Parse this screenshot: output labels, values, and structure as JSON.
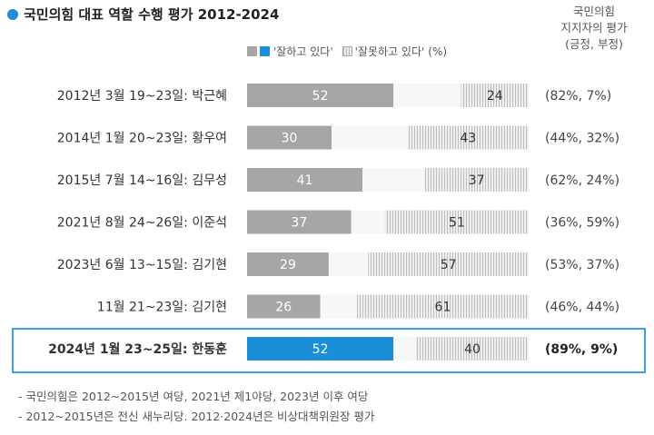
{
  "title": "국민의힘 대표 역할 수행 평가 2012-2024",
  "side_header": [
    "국민의힘",
    "지지자의 평가",
    "(긍정, 부정)"
  ],
  "legend": {
    "positive": "'잘하고 있다'",
    "negative": "'잘못하고 있다'",
    "unit": "(%)"
  },
  "colors": {
    "positive": "#a6a6a6",
    "highlight": "#1a8fd8",
    "accent_dot": "#1a8fd8"
  },
  "chart_data": {
    "type": "bar",
    "orientation": "horizontal",
    "stacked": true,
    "title": "국민의힘 대표 역할 수행 평가 2012-2024",
    "categories": [
      "2012년 3월 19~23일: 박근혜",
      "2014년 1월 20~23일: 황우여",
      "2015년 7월 14~16일: 김무성",
      "2021년 8월 24~26일: 이준석",
      "2023년 6월 13~15일: 김기현",
      "11월 21~23일: 김기현",
      "2024년 1월 23~25일: 한동훈"
    ],
    "series": [
      {
        "name": "'잘하고 있다'",
        "values": [
          52,
          30,
          41,
          37,
          29,
          26,
          52
        ]
      },
      {
        "name": "'잘못하고 있다'",
        "values": [
          24,
          43,
          37,
          51,
          57,
          61,
          40
        ]
      }
    ],
    "supporter_evaluation": [
      "(82%, 7%)",
      "(44%, 32%)",
      "(62%, 24%)",
      "(36%, 59%)",
      "(53%, 37%)",
      "(46%, 44%)",
      "(89%, 9%)"
    ],
    "highlighted_row": 6,
    "xlim": [
      0,
      100
    ]
  },
  "notes": [
    "- 국민의힘은 2012~2015년 여당, 2021년 제1야당, 2023년 이후 여당",
    "- 2012~2015년은 전신 새누리당. 2012·2024년은 비상대책위원장 평가"
  ]
}
